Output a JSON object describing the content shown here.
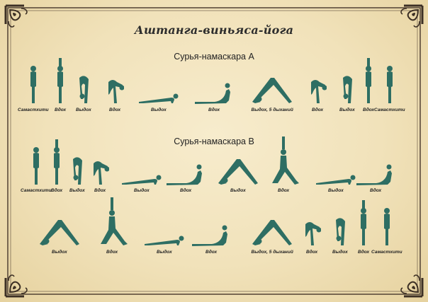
{
  "title": "Аштанга-виньяса-йога",
  "sections": [
    {
      "title": "Сурья-намаскара А",
      "rows": [
        [
          "Самастхити",
          "Вдох",
          "Выдох",
          "Вдох",
          "Выдох",
          "Вдох",
          "Выдох, 5 дыханий",
          "Вдох",
          "Выдох",
          "Вдох",
          "Самастхити"
        ]
      ]
    },
    {
      "title": "Сурья-намаскара В",
      "rows": [
        [
          "Самастхити",
          "Вдох",
          "Выдох",
          "Вдох",
          "Выдох",
          "Вдох",
          "Выдох",
          "Вдох",
          "Выдох",
          "Вдох"
        ],
        [
          "Выдох",
          "Вдох",
          "Выдох",
          "Вдох",
          "Выдох, 5 дыханий",
          "Вдох",
          "Выдох",
          "Вдох",
          "Самастхити"
        ]
      ]
    }
  ],
  "colors": {
    "silhouette": "#2e6e63",
    "background": "#f1e2ba",
    "ornament": "#5a4a3a"
  }
}
